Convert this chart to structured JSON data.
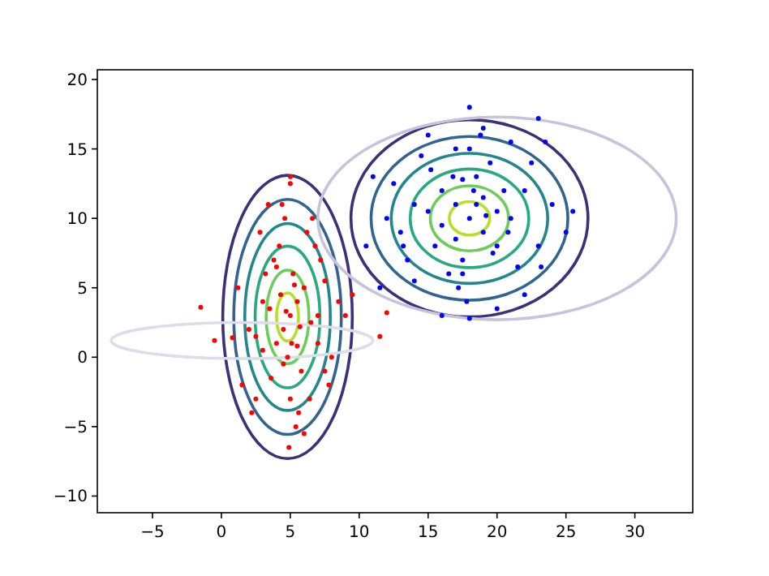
{
  "chart_data": {
    "type": "scatter",
    "xlim": [
      -9,
      34.2
    ],
    "ylim": [
      -11.2,
      20.7
    ],
    "xticks": [
      -5,
      0,
      5,
      10,
      15,
      20,
      25,
      30
    ],
    "yticks": [
      -10,
      -5,
      0,
      5,
      10,
      15,
      20
    ],
    "marker": "circle",
    "series": [
      {
        "type": "scatter",
        "color": "#ff0000",
        "x": [
          5,
          4.5,
          5.5,
          4,
          6,
          3.5,
          6.5,
          5.2,
          4.8,
          3,
          7,
          2.5,
          7.5,
          4.2,
          5.8,
          5,
          4.6,
          5.4,
          3.8,
          6.2,
          2,
          8,
          1.5,
          8.5,
          4.4,
          5.6,
          3.2,
          6.8,
          5,
          4.9,
          3.6,
          6.4,
          2.8,
          7.2,
          5.1,
          4.3,
          5.7,
          1.2,
          9,
          2.2,
          7.8,
          4,
          6,
          3.4,
          6.6,
          5.3,
          4.7,
          0.8,
          -1.5,
          -0.5,
          11.5,
          12,
          9.5,
          3,
          7,
          4.5,
          5.5,
          2.5,
          7.5,
          5
        ],
        "values": [
          3,
          2,
          4,
          1,
          5,
          3.5,
          2.5,
          6,
          0,
          4,
          3,
          1.5,
          5.5,
          8,
          -1,
          -3,
          10,
          -5,
          7,
          9,
          2,
          0,
          -2,
          4,
          11,
          -4,
          6,
          8,
          12.5,
          -6.5,
          -1.5,
          -3,
          9,
          7,
          1,
          4.5,
          2.2,
          5,
          3,
          -4,
          -2,
          6.5,
          -5.5,
          11,
          10,
          5.2,
          3.3,
          1.4,
          3.6,
          1.2,
          1.5,
          3.2,
          4.5,
          0.5,
          1,
          -0.5,
          0.8,
          -3,
          -1,
          13
        ]
      },
      {
        "type": "scatter",
        "color": "#0000ff",
        "x": [
          18,
          17,
          19,
          16,
          20,
          15,
          21,
          18.5,
          17.5,
          14,
          22,
          13,
          23,
          16.5,
          19.5,
          18,
          17.2,
          18.8,
          12,
          24,
          11,
          25,
          15.5,
          20.5,
          14.5,
          21.5,
          18,
          17.8,
          13.5,
          22.5,
          16,
          20,
          19,
          17,
          23.5,
          12.5,
          10.5,
          25.5,
          18.3,
          16.8,
          19.7,
          15,
          21,
          14,
          22,
          17.5,
          18.5,
          20.8,
          15.2,
          13.2,
          23.2,
          16,
          20,
          19,
          17,
          18,
          17.5,
          23,
          19.2,
          11.5
        ],
        "values": [
          10,
          11,
          9,
          12,
          8,
          10.5,
          10,
          13,
          7,
          11,
          12,
          9,
          8,
          6,
          14,
          15,
          5,
          16,
          10,
          11,
          13,
          9,
          8,
          12,
          14.5,
          6.5,
          18,
          4,
          7,
          14,
          9.5,
          10.5,
          11.5,
          8.5,
          15.5,
          12.5,
          8,
          10.5,
          12,
          13,
          7.5,
          16,
          15.5,
          5.5,
          4.5,
          6,
          11,
          9,
          13.5,
          8,
          6.5,
          3,
          3.5,
          16.5,
          15,
          2.8,
          12.8,
          17.2,
          10.2,
          5
        ]
      }
    ]
  }
}
